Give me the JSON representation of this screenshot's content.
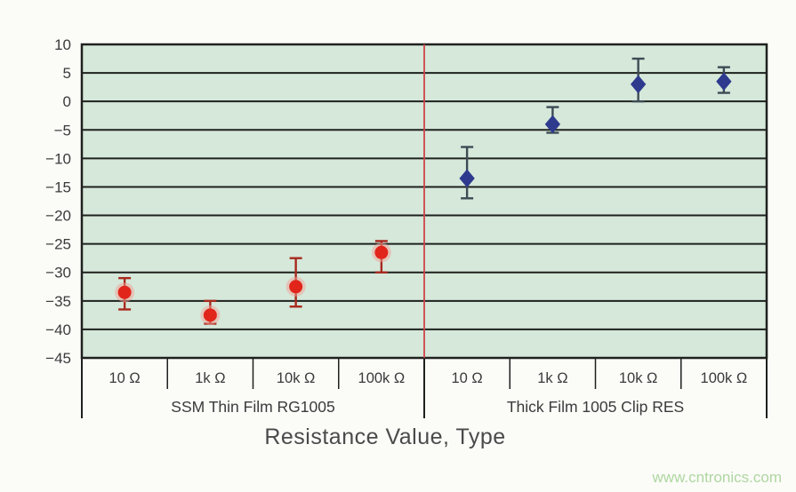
{
  "watermark": {
    "text": "www.cntronics.com",
    "color": "#aed7a0"
  },
  "colors": {
    "page_background": "#fbfbf8",
    "plot_background": "#d5e8da",
    "grid_line": "#1e211e",
    "axis_text": "#3b3b3b",
    "divider_line": "#cf4348",
    "red_marker": "#e1251b",
    "red_marker_halo": "#f4a095",
    "red_error_bar": "#a8291e",
    "blue_marker": "#2e3a8e",
    "blue_error_bar": "#3d4b55"
  },
  "chart_data": {
    "type": "scatter",
    "title": "",
    "xlabel": "Resistance Value, Type",
    "ylabel": "",
    "ylim": [
      -45,
      10
    ],
    "grid": true,
    "legend_position": "none",
    "ytick_values": [
      10,
      5,
      0,
      -5,
      -10,
      -15,
      -20,
      -25,
      -30,
      -35,
      -40,
      -45
    ],
    "ytick_labels": [
      "10",
      "5",
      "0",
      "−5",
      "−10",
      "−15",
      "−20",
      "−25",
      "−30",
      "−35",
      "−40",
      "−45"
    ],
    "categories": [
      "10 Ω",
      "1k Ω",
      "10k Ω",
      "100k Ω",
      "10 Ω",
      "1k Ω",
      "10k Ω",
      "100k Ω"
    ],
    "groups": [
      {
        "label": "SSM Thin Film RG1005",
        "span": [
          0,
          3
        ]
      },
      {
        "label": "Thick Film 1005 Clip RES",
        "span": [
          4,
          7
        ]
      }
    ],
    "divider": {
      "between_columns": [
        3,
        4
      ],
      "color": "#cf4348"
    },
    "series": [
      {
        "name": "SSM Thin Film RG1005",
        "marker": "circle",
        "color": "#e1251b",
        "halo_color": "#f4a095",
        "error_color": "#a8291e",
        "points": [
          {
            "category": "10 Ω",
            "value": -33.5,
            "err_high": -31,
            "err_low": -36.5
          },
          {
            "category": "1k Ω",
            "value": -37.5,
            "err_high": -35,
            "err_low": -39
          },
          {
            "category": "10k Ω",
            "value": -32.5,
            "err_high": -27.5,
            "err_low": -36
          },
          {
            "category": "100k Ω",
            "value": -26.5,
            "err_high": -24.5,
            "err_low": -30
          }
        ]
      },
      {
        "name": "Thick Film 1005 Clip RES",
        "marker": "diamond",
        "color": "#2e3a8e",
        "halo_color": "#6a74c0",
        "error_color": "#3d4b55",
        "points": [
          {
            "category": "10 Ω",
            "value": -13.5,
            "err_high": -8,
            "err_low": -17
          },
          {
            "category": "1k Ω",
            "value": -4,
            "err_high": -1,
            "err_low": -5.5
          },
          {
            "category": "10k Ω",
            "value": 3,
            "err_high": 7.5,
            "err_low": 0
          },
          {
            "category": "100k Ω",
            "value": 3.5,
            "err_high": 6,
            "err_low": 1.5
          }
        ]
      }
    ]
  }
}
